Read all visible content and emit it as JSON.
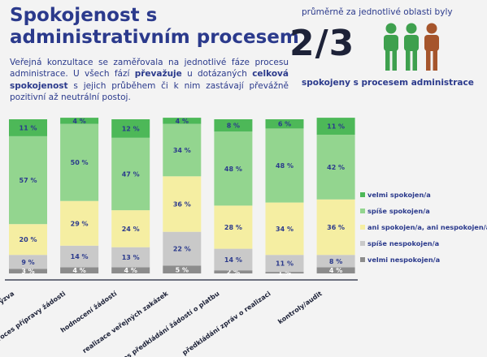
{
  "header": {
    "title": "Spokojenost s administrativním procesem",
    "intro_1": "Veřejná konzultace se zaměřovala na jednotlivé fáze procesu administrace. U všech fází ",
    "intro_bold_1": "převažuje",
    "intro_2": " u dotázaných ",
    "intro_bold_2": "celková spokojenost",
    "intro_3": " s jejich průběhem či k nim zastávají převážně pozitivní až neutrální postoj."
  },
  "stat": {
    "top_text": "průměrně za jednotlivé oblasti byly",
    "big_value": "2/3",
    "bottom_text": "spokojeny s procesem administrace",
    "icon": "people-icon",
    "icon_colors": [
      "#3ea04e",
      "#3ea04e",
      "#a6552c"
    ]
  },
  "chart_data": {
    "type": "bar",
    "stacked": true,
    "orientation": "vertical",
    "categories": [
      "výzva",
      "proces přípravy žádosti",
      "hodnocení žádostí",
      "realizace veřejných zakázek",
      "proces předkládání žádostí o platbu",
      "předkládání zpráv o realizaci",
      "kontroly/audit"
    ],
    "series": [
      {
        "name": "velmi nespokojen/a",
        "color": "#8c8c8c",
        "values": [
          3,
          4,
          4,
          5,
          2,
          1,
          4
        ]
      },
      {
        "name": "spíše nespokojen/a",
        "color": "#c9c9c9",
        "values": [
          9,
          14,
          13,
          22,
          14,
          11,
          8
        ]
      },
      {
        "name": "ani spokojen/a, ani nespokojen/a",
        "color": "#f5eea2",
        "values": [
          20,
          29,
          24,
          36,
          28,
          34,
          36
        ]
      },
      {
        "name": "spíše spokojen/a",
        "color": "#93d58f",
        "values": [
          57,
          50,
          47,
          34,
          48,
          48,
          42
        ]
      },
      {
        "name": "velmi spokojen/a",
        "color": "#4db858",
        "values": [
          11,
          4,
          12,
          4,
          8,
          6,
          11
        ]
      }
    ],
    "value_suffix": " %",
    "legend_order": [
      "velmi spokojen/a",
      "spíše spokojen/a",
      "ani spokojen/a, ani nespokojen/a",
      "spíše nespokojen/a",
      "velmi nespokojen/a"
    ],
    "legend_position": "right",
    "ylim": [
      0,
      100
    ]
  }
}
